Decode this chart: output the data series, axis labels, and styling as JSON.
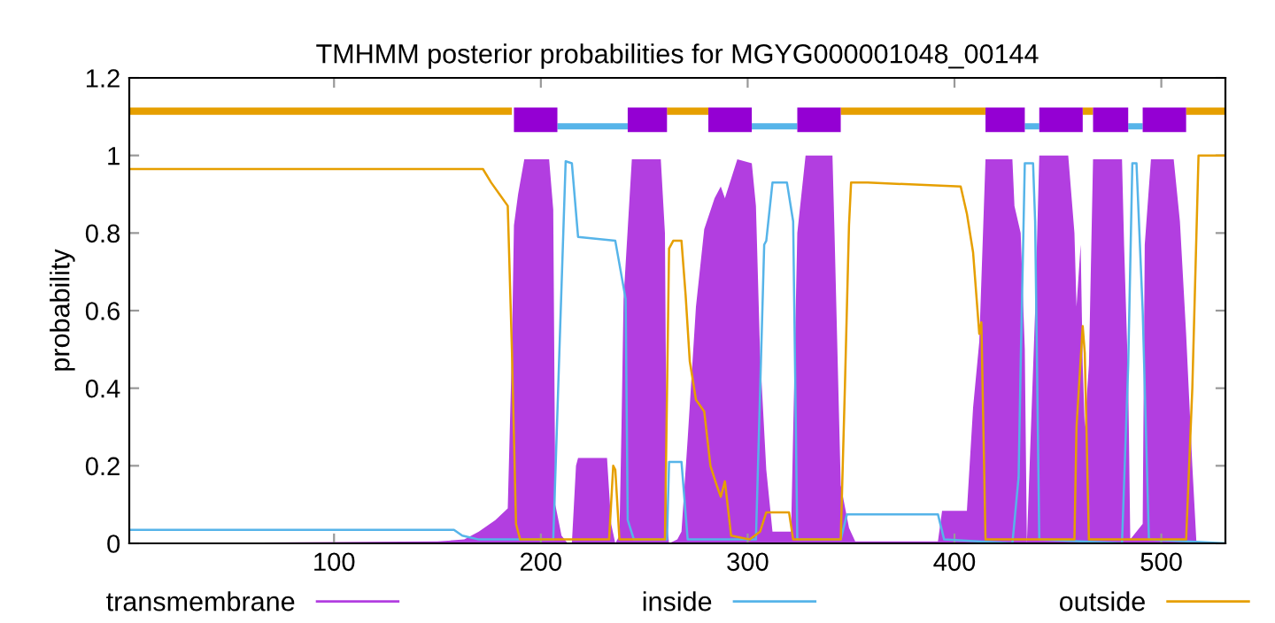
{
  "chart_data": {
    "type": "line",
    "title": "TMHMM posterior probabilities for MGYG000001048_00144",
    "ylabel": "probability",
    "xlim": [
      1,
      531
    ],
    "ylim": [
      0,
      1.2
    ],
    "xticks": [
      100,
      200,
      300,
      400,
      500
    ],
    "yticks": [
      0,
      0.2,
      0.4,
      0.6,
      0.8,
      1,
      1.2
    ],
    "grid": false,
    "legend": "bottom",
    "series": [
      {
        "name": "transmembrane",
        "type": "area",
        "color": "#b23ee0",
        "x": [
          1,
          150,
          163,
          170,
          178,
          184,
          186,
          187,
          189,
          192,
          204,
          206,
          207,
          210,
          213,
          215,
          217,
          218,
          232,
          234,
          236,
          238,
          239,
          240,
          243,
          244,
          258,
          260,
          261,
          262,
          266,
          268,
          271,
          275,
          279,
          284,
          287,
          289,
          295,
          302,
          304,
          306,
          309,
          312,
          321,
          324,
          328,
          341,
          342,
          345,
          349,
          352,
          392,
          394,
          406,
          409,
          412,
          415,
          428,
          429,
          432,
          434,
          435,
          439,
          441,
          455,
          458,
          459,
          461,
          462,
          463,
          465,
          467,
          481,
          482,
          484,
          485,
          491,
          492,
          495,
          506,
          509,
          512,
          515,
          517,
          531
        ],
        "values": [
          0,
          0.005,
          0.01,
          0.03,
          0.06,
          0.09,
          0.5,
          0.82,
          0.9,
          0.99,
          0.99,
          0.86,
          0.1,
          0.02,
          0,
          0,
          0.2,
          0.22,
          0.22,
          0.05,
          0,
          0.02,
          0.3,
          0.63,
          0.9,
          0.99,
          0.99,
          0.8,
          0.05,
          0,
          0.01,
          0.03,
          0.27,
          0.61,
          0.81,
          0.89,
          0.92,
          0.89,
          0.99,
          0.98,
          0.87,
          0.49,
          0.19,
          0.03,
          0.03,
          0.8,
          1.0,
          1.0,
          0.8,
          0.15,
          0.04,
          0.005,
          0.005,
          0.084,
          0.084,
          0.35,
          0.52,
          0.99,
          0.99,
          0.87,
          0.8,
          0.5,
          0,
          0.6,
          1.0,
          1.0,
          0.8,
          0.61,
          0.77,
          0.46,
          0.3,
          0.46,
          0.99,
          0.99,
          0.77,
          0.42,
          0.01,
          0.05,
          0.77,
          0.99,
          0.99,
          0.83,
          0.54,
          0.2,
          0,
          0
        ]
      },
      {
        "name": "inside",
        "color": "#56b4e9",
        "x": [
          1,
          158,
          162,
          170,
          206,
          209,
          212,
          215,
          218,
          236,
          241,
          242,
          245,
          261,
          262,
          268,
          271,
          304,
          308,
          309,
          312,
          319,
          322,
          324,
          345,
          348,
          358,
          392,
          395,
          428,
          431,
          432,
          434,
          438,
          439,
          441,
          481,
          484,
          486,
          488,
          491,
          494,
          531
        ],
        "values": [
          0.035,
          0.035,
          0.02,
          0.01,
          0.01,
          0.5,
          0.985,
          0.98,
          0.79,
          0.78,
          0.63,
          0.06,
          0.01,
          0.01,
          0.21,
          0.21,
          0.01,
          0.01,
          0.77,
          0.78,
          0.93,
          0.93,
          0.83,
          0.01,
          0.01,
          0.075,
          0.075,
          0.075,
          0.01,
          0,
          0.17,
          0.46,
          0.98,
          0.98,
          0.83,
          0.01,
          0,
          0.46,
          0.98,
          0.98,
          0.6,
          0.01,
          0
        ]
      },
      {
        "name": "outside",
        "color": "#e69f00",
        "x": [
          1,
          172,
          176,
          180,
          184,
          186,
          188,
          190,
          210,
          217,
          233,
          235,
          236,
          238,
          260,
          262,
          264,
          268,
          270,
          272,
          275,
          279,
          282,
          285,
          287,
          289,
          292,
          301,
          306,
          309,
          320,
          322,
          345,
          347,
          349,
          350,
          358,
          403,
          406,
          409,
          412,
          413,
          415,
          458,
          459,
          462,
          463,
          465,
          512,
          515,
          518,
          531
        ],
        "values": [
          0.965,
          0.965,
          0.93,
          0.9,
          0.87,
          0.5,
          0.05,
          0.01,
          0.01,
          0.01,
          0.01,
          0.2,
          0.19,
          0.01,
          0.01,
          0.76,
          0.78,
          0.78,
          0.64,
          0.47,
          0.37,
          0.34,
          0.2,
          0.15,
          0.12,
          0.16,
          0.02,
          0.01,
          0.03,
          0.08,
          0.08,
          0.01,
          0.01,
          0.4,
          0.82,
          0.93,
          0.93,
          0.92,
          0.85,
          0.75,
          0.54,
          0.57,
          0.01,
          0.01,
          0.3,
          0.56,
          0.49,
          0.01,
          0.01,
          0.4,
          1.0,
          1.0
        ]
      },
      {
        "color": "#e69f00",
        "x": [
          1,
          186,
          187,
          261,
          281,
          282,
          345,
          415,
          416,
          462,
          467,
          468,
          512,
          531
        ],
        "values": [
          1.114,
          1.114,
          null,
          1.114,
          1.114,
          null,
          1.114,
          1.114,
          null,
          1.114,
          1.114,
          null,
          1.114,
          1.114
        ]
      },
      {
        "color": "#56b4e9",
        "x": [
          208,
          242,
          243,
          302,
          324,
          325,
          434,
          441,
          442,
          484,
          491
        ],
        "values": [
          1.075,
          1.075,
          null,
          1.075,
          1.075,
          null,
          1.075,
          1.075,
          null,
          1.075,
          1.075
        ]
      },
      {
        "color": "#9400d3",
        "x": [
          187,
          208,
          209,
          242,
          261,
          262,
          281,
          302,
          303,
          324,
          345,
          346,
          415,
          434,
          435,
          441,
          462,
          463,
          467,
          484,
          485,
          491,
          512
        ],
        "values": [
          1.092,
          1.092,
          null,
          1.092,
          1.092,
          null,
          1.092,
          1.092,
          null,
          1.092,
          1.092,
          null,
          1.092,
          1.092,
          null,
          1.092,
          1.092,
          null,
          1.092,
          1.092,
          null,
          1.092,
          1.092
        ]
      }
    ]
  }
}
